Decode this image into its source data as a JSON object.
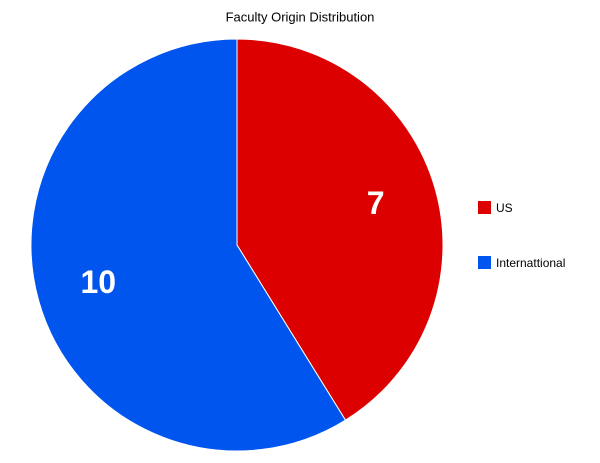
{
  "chart_data": {
    "type": "pie",
    "title": "Faculty Origin Distribution",
    "categories": [
      "US",
      "Internattional"
    ],
    "values": [
      7,
      10
    ],
    "colors": [
      "#dd0000",
      "#0055ee"
    ],
    "legend": "right"
  }
}
